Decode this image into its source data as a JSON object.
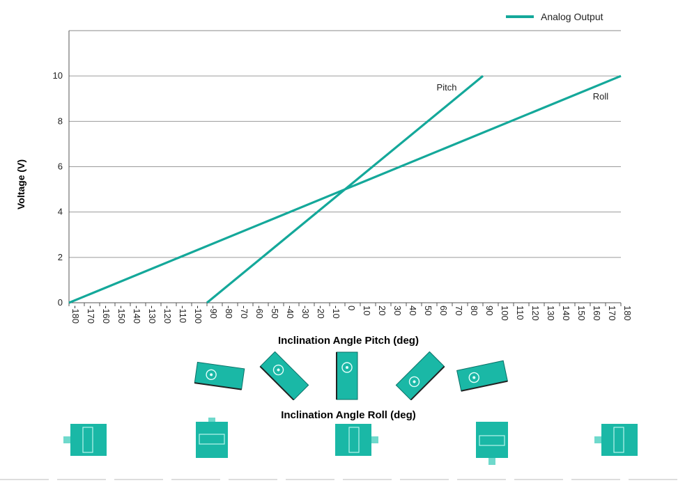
{
  "colors": {
    "series": "#14a89a",
    "grid": "#9a9a9a",
    "axis": "#555555",
    "sensor": "#1ab8a6",
    "sensor_dark": "#0b6f66"
  },
  "legend": {
    "label": "Analog Output",
    "icon": "line-swatch"
  },
  "chart_data": {
    "type": "line",
    "title": "",
    "xlabel": "Inclination Angle Pitch (deg)",
    "xlabel2": "Inclination Angle  Roll (deg)",
    "ylabel": "Voltage (V)",
    "xlim": [
      -180,
      180
    ],
    "ylim": [
      0,
      12
    ],
    "grid": true,
    "legend_position": "top-right",
    "y_ticks": [
      "0",
      "2",
      "4",
      "6",
      "8",
      "10"
    ],
    "y_tick_values": [
      0,
      2,
      4,
      6,
      8,
      10
    ],
    "x_ticks": [
      "-180",
      "-170",
      "-160",
      "-150",
      "-140",
      "-130",
      "-120",
      "-110",
      "-100",
      "-90",
      "-80",
      "-70",
      "-60",
      "-50",
      "-40",
      "-30",
      "-20",
      "-10",
      "0",
      "10",
      "20",
      "30",
      "40",
      "50",
      "60",
      "70",
      "80",
      "90",
      "100",
      "110",
      "120",
      "130",
      "140",
      "150",
      "160",
      "170",
      "180"
    ],
    "x_tick_values": [
      -180,
      -170,
      -160,
      -150,
      -140,
      -130,
      -120,
      -110,
      -100,
      -90,
      -80,
      -70,
      -60,
      -50,
      -40,
      -30,
      -20,
      -10,
      0,
      10,
      20,
      30,
      40,
      50,
      60,
      70,
      80,
      90,
      100,
      110,
      120,
      130,
      140,
      150,
      160,
      170,
      180
    ],
    "series": [
      {
        "name": "Pitch",
        "x": [
          -90,
          90
        ],
        "y": [
          0,
          10
        ]
      },
      {
        "name": "Roll",
        "x": [
          -180,
          180
        ],
        "y": [
          0,
          10
        ]
      }
    ]
  },
  "pitch_icons": [
    {
      "angle": -90,
      "rotation": 8
    },
    {
      "angle": -45,
      "rotation": 45
    },
    {
      "angle": 0,
      "rotation": 90
    },
    {
      "angle": 45,
      "rotation": -45
    },
    {
      "angle": 90,
      "rotation": -12
    }
  ],
  "roll_icons": [
    {
      "angle": -180,
      "orientation": "left"
    },
    {
      "angle": -90,
      "orientation": "down"
    },
    {
      "angle": 0,
      "orientation": "right"
    },
    {
      "angle": 90,
      "orientation": "up"
    },
    {
      "angle": 180,
      "orientation": "left"
    }
  ]
}
